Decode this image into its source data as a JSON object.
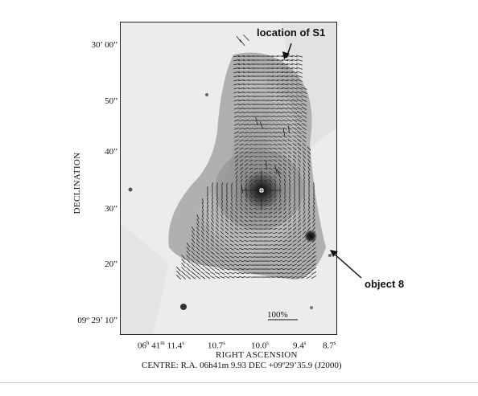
{
  "figure": {
    "y_axis_label": "DECLINATION",
    "y_ticks": [
      "30’ 00”",
      "50”",
      "40”",
      "30”",
      "20”",
      "09º 29’ 10”"
    ],
    "x_axis_label": "RIGHT ASCENSION",
    "x_ticks": [
      {
        "main": "06",
        "h": "h",
        "p2": "41",
        "m": "m",
        "p3": "11.4",
        "s": "s"
      },
      {
        "main": "10.7",
        "s": "s"
      },
      {
        "main": "10.0",
        "s": "s"
      },
      {
        "main": "9.4",
        "s": "s"
      },
      {
        "main": "8.7",
        "s": "s"
      }
    ],
    "centre_text": "CENTRE:  R.A. 06h41m 9.93  DEC  +09º29’35.9  (J2000)",
    "annotation_s1": "location of S1",
    "annotation_obj8": "object 8",
    "scale_label": "100%"
  }
}
